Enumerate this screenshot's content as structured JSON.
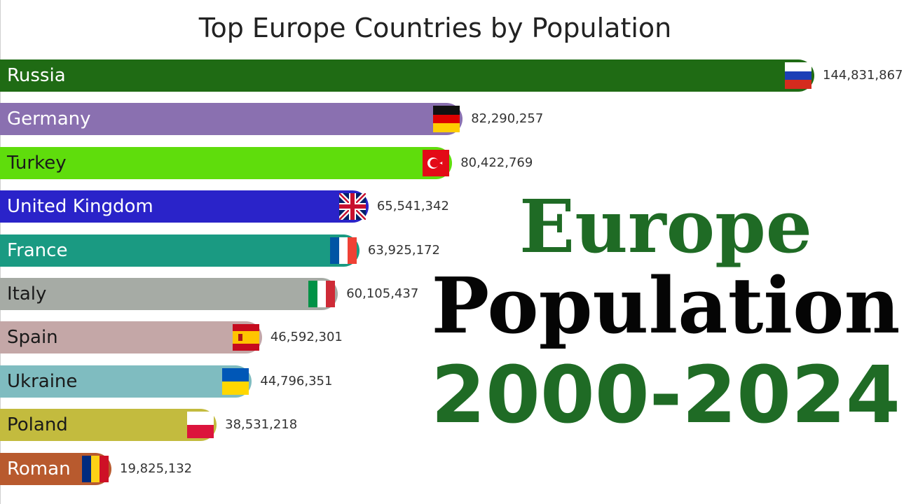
{
  "colors": {
    "headline_green": "#1f6b25",
    "headline_black": "#050505"
  },
  "chart_data": {
    "type": "bar",
    "orientation": "horizontal",
    "title": "Top Europe Countries by Population",
    "categories": [
      "Russia",
      "Germany",
      "Turkey",
      "United Kingdom",
      "France",
      "Italy",
      "Spain",
      "Ukraine",
      "Poland",
      "Roman"
    ],
    "values": [
      144831867,
      82290257,
      80422769,
      65541342,
      63925172,
      60105437,
      46592301,
      44796351,
      38531218,
      19825132
    ],
    "value_labels": [
      "144,831,867",
      "82,290,257",
      "80,422,769",
      "65,541,342",
      "63,925,172",
      "60,105,437",
      "46,592,301",
      "44,796,351",
      "38,531,218",
      "19,825,132"
    ],
    "bar_colors": [
      "#1f6b14",
      "#8a70b0",
      "#5fdd0c",
      "#2a23c9",
      "#1a9a82",
      "#a6aba5",
      "#c4a7a7",
      "#7fbcc0",
      "#c3bb3e",
      "#b85a2e"
    ],
    "label_colors": [
      "#ffffff",
      "#ffffff",
      "#1a1a1a",
      "#ffffff",
      "#ffffff",
      "#1a1a1a",
      "#1a1a1a",
      "#1a1a1a",
      "#1a1a1a",
      "#ffffff"
    ],
    "flags": [
      "russia-flag-icon",
      "germany-flag-icon",
      "turkey-flag-icon",
      "uk-flag-icon",
      "france-flag-icon",
      "italy-flag-icon",
      "spain-flag-icon",
      "ukraine-flag-icon",
      "poland-flag-icon",
      "romania-flag-icon"
    ],
    "xlim": [
      0,
      144831867
    ],
    "grid": false,
    "legend": "none"
  },
  "headline": {
    "line1": "Europe",
    "line2": "Population",
    "line3": "2000-2024"
  }
}
